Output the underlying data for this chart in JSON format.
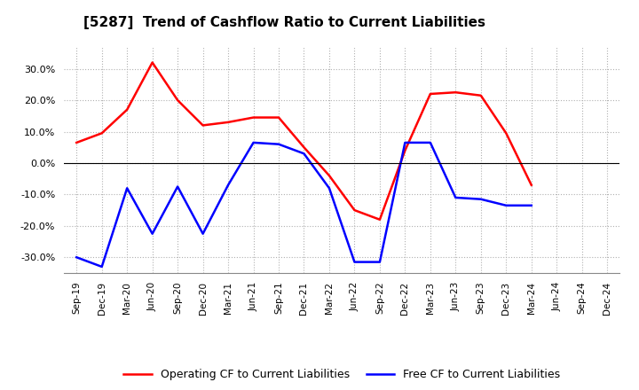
{
  "title": "[5287]  Trend of Cashflow Ratio to Current Liabilities",
  "x_labels": [
    "Sep-19",
    "Dec-19",
    "Mar-20",
    "Jun-20",
    "Sep-20",
    "Dec-20",
    "Mar-21",
    "Jun-21",
    "Sep-21",
    "Dec-21",
    "Mar-22",
    "Jun-22",
    "Sep-22",
    "Dec-22",
    "Mar-23",
    "Jun-23",
    "Sep-23",
    "Dec-23",
    "Mar-24",
    "Jun-24",
    "Sep-24",
    "Dec-24"
  ],
  "operating_cf": [
    6.5,
    9.5,
    17.0,
    32.0,
    20.0,
    12.0,
    13.0,
    14.5,
    14.5,
    5.0,
    -4.0,
    -15.0,
    -18.0,
    4.0,
    22.0,
    22.5,
    21.5,
    9.5,
    -7.0,
    null,
    null,
    null
  ],
  "free_cf": [
    -30.0,
    -33.0,
    -8.0,
    -22.5,
    -7.5,
    -22.5,
    -7.0,
    6.5,
    6.0,
    3.0,
    -8.0,
    -31.5,
    -31.5,
    6.5,
    6.5,
    -11.0,
    -11.5,
    -13.5,
    -13.5,
    null,
    null,
    null
  ],
  "operating_color": "#ff0000",
  "free_color": "#0000ff",
  "ylim": [
    -35,
    37
  ],
  "yticks": [
    -30,
    -20,
    -10,
    0,
    10,
    20,
    30
  ],
  "background_color": "#ffffff",
  "grid_color": "#b0b0b0",
  "legend_op": "Operating CF to Current Liabilities",
  "legend_free": "Free CF to Current Liabilities"
}
